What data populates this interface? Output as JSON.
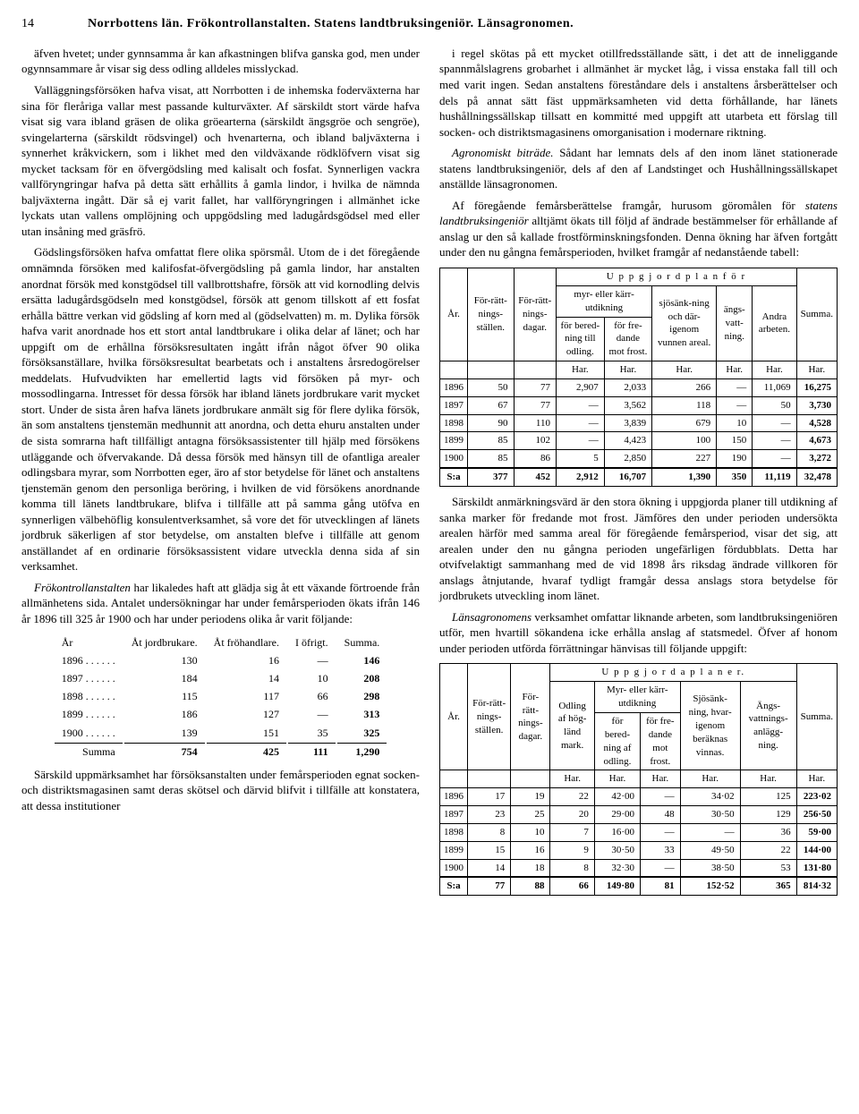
{
  "header": {
    "page_number": "14",
    "titles": "Norrbottens län.   Frökontrollanstalten.   Statens landtbruksingeniör.   Länsagronomen."
  },
  "left": {
    "p1": "äfven hvetet; under gynnsamma år kan afkastningen blifva ganska god, men under ogynnsammare år visar sig dess odling alldeles misslyckad.",
    "p2": "Valläggningsförsöken hafva visat, att Norrbotten i de inhemska foderväxterna har sina för fleråriga vallar mest passande kulturväxter. Af särskildt stort värde hafva visat sig vara ibland gräsen de olika gröearterna (särskildt ängsgröe och sengröe), svingelarterna (särskildt rödsvingel) och hvenarterna, och ibland baljväxterna i synnerhet kråkvickern, som i likhet med den vildväxande rödklöfvern visat sig mycket tacksam för en öfvergödsling med kalisalt och fosfat. Synnerligen vackra vallföryngringar hafva på detta sätt erhållits å gamla lindor, i hvilka de nämnda baljväxterna ingått. Där så ej varit fallet, har vallföryngringen i allmänhet icke lyckats utan vallens omplöjning och uppgödsling med ladugårdsgödsel med eller utan insåning med gräsfrö.",
    "p3": "Gödslingsförsöken hafva omfattat flere olika spörsmål. Utom de i det föregående omnämnda försöken med kalifosfat-öfvergödsling på gamla lindor, har anstalten anordnat försök med konstgödsel till vallbrottshafre, försök att vid kornodling delvis ersätta ladugårdsgödseln med konstgödsel, försök att genom tillskott af ett fosfat erhålla bättre verkan vid gödsling af korn med al (gödselvatten) m. m. Dylika försök hafva varit anordnade hos ett stort antal landtbrukare i olika delar af länet; och har uppgift om de erhållna försöksresultaten ingått ifrån något öfver 90 olika försöksanställare, hvilka försöksresultat bearbetats och i anstaltens årsredogörelser meddelats. Hufvudvikten har emellertid lagts vid försöken på myr- och mossodlingarna. Intresset för dessa försök har ibland länets jordbrukare varit mycket stort. Under de sista åren hafva länets jordbrukare anmält sig för flere dylika försök, än som anstaltens tjenstemän medhunnit att anordna, och detta ehuru anstalten under de sista somrarna haft tillfälligt antagna försöksassistenter till hjälp med försökens utläggande och öfvervakande. Då dessa försök med hänsyn till de ofantliga arealer odlingsbara myrar, som Norrbotten eger, äro af stor betydelse för länet och anstaltens tjenstemän genom den personliga beröring, i hvilken de vid försökens anordnande komma till länets landtbrukare, blifva i tillfälle att på samma gång utöfva en synnerligen välbehöflig konsulentverksamhet, så vore det för utvecklingen af länets jordbruk säkerligen af stor betydelse, om anstalten blefve i tillfälle att genom anställandet af en ordinarie försöksassistent vidare utveckla denna sida af sin verksamhet.",
    "p4a": "Frökontrollanstalten",
    "p4b": " har likaledes haft att glädja sig åt ett växande förtroende från allmänhetens sida. Antalet undersökningar har under femårsperioden ökats ifrån 146 år 1896 till 325 år 1900 och har under periodens olika år varit följande:",
    "simple_table": {
      "headers": [
        "År",
        "Åt jordbrukare.",
        "Åt fröhandlare.",
        "I öfrigt.",
        "Summa."
      ],
      "rows": [
        [
          "1896 . . . . . .",
          "130",
          "16",
          "—",
          "146"
        ],
        [
          "1897 . . . . . .",
          "184",
          "14",
          "10",
          "208"
        ],
        [
          "1898 . . . . . .",
          "115",
          "117",
          "66",
          "298"
        ],
        [
          "1899 . . . . . .",
          "186",
          "127",
          "—",
          "313"
        ],
        [
          "1900 . . . . . .",
          "139",
          "151",
          "35",
          "325"
        ]
      ],
      "sum": [
        "Summa",
        "754",
        "425",
        "111",
        "1,290"
      ]
    },
    "p5": "Särskild uppmärksamhet har försöksanstalten under femårsperioden egnat socken- och distriktsmagasinen samt deras skötsel och därvid blifvit i tillfälle att konstatera, att dessa institutioner"
  },
  "right": {
    "p1": "i regel skötas på ett mycket otillfredsställande sätt, i det att de inneliggande spannmålslagrens grobarhet i allmänhet är mycket låg, i vissa enstaka fall till och med varit ingen. Sedan anstaltens föreståndare dels i anstaltens årsberättelser och dels på annat sätt fäst uppmärksamheten vid detta förhållande, har länets hushållningssällskap tillsatt en kommitté med uppgift att utarbeta ett förslag till socken- och distriktsmagasinens omorganisation i modernare riktning.",
    "p2a": "Agronomiskt biträde.",
    "p2b": "  Sådant har lemnats dels af den inom länet stationerade statens landtbruksingeniör, dels af den af Landstinget och Hushållningssällskapet anställde länsagronomen.",
    "p3a": "Af föregående femårsberättelse framgår, hurusom göromålen för ",
    "p3b": "statens landtbruksingeniör",
    "p3c": " alltjämt ökats till följd af ändrade bestämmelser för erhållande af anslag ur den så kallade frostförminskningsfonden. Denna ökning har äfven fortgått under den nu gångna femårsperioden, hvilket framgår af nedanstående tabell:",
    "table1": {
      "caption": "U p p g j o r d   p l a n   f ö r",
      "headers_row2": [
        "År.",
        "För-rätt-nings-ställen.",
        "För-rätt-nings-dagar.",
        "myr- eller kärr-utdikning",
        "",
        "sjösänk-ning och där-igenom vunnen areal.",
        "ängs-vatt-ning.",
        "Andra arbeten.",
        "Summa."
      ],
      "headers_row3": [
        "för bered-ning till odling.",
        "för fre-dande mot frost."
      ],
      "unit": "Har.",
      "rows": [
        [
          "1896",
          "50",
          "77",
          "2,907",
          "2,033",
          "266",
          "—",
          "11,069",
          "16,275"
        ],
        [
          "1897",
          "67",
          "77",
          "—",
          "3,562",
          "118",
          "—",
          "50",
          "3,730"
        ],
        [
          "1898",
          "90",
          "110",
          "—",
          "3,839",
          "679",
          "10",
          "—",
          "4,528"
        ],
        [
          "1899",
          "85",
          "102",
          "—",
          "4,423",
          "100",
          "150",
          "—",
          "4,673"
        ],
        [
          "1900",
          "85",
          "86",
          "5",
          "2,850",
          "227",
          "190",
          "—",
          "3,272"
        ]
      ],
      "sum": [
        "S:a",
        "377",
        "452",
        "2,912",
        "16,707",
        "1,390",
        "350",
        "11,119",
        "32,478"
      ]
    },
    "p4": "Särskildt anmärkningsvärd är den stora ökning i uppgjorda planer till utdikning af sanka marker för fredande mot frost. Jämföres den under perioden undersökta arealen härför med samma areal för föregående femårsperiod, visar det sig, att arealen under den nu gångna perioden ungefärligen fördubblats. Detta har otvifvelaktigt sammanhang med de vid 1898 års riksdag ändrade villkoren för anslags åtnjutande, hvaraf tydligt framgår dessa anslags stora betydelse för jordbrukets utveckling inom länet.",
    "p5a": "Länsagronomens",
    "p5b": " verksamhet omfattar liknande arbeten, som landtbruksingeniören utför, men hvartill sökandena icke erhålla anslag af statsmedel. Öfver af honom under perioden utförda förrättningar hänvisas till följande uppgift:",
    "table2": {
      "caption": "U p p g j o r d a   p l a n e r.",
      "headers_row2": [
        "År.",
        "För-rätt-nings-ställen.",
        "För-rätt-nings-dagar.",
        "Odling af hög-länd mark.",
        "Myr- eller kärr-utdikning",
        "",
        "Sjösänk-ning, hvar-igenom beräknas vinnas.",
        "Ängs-vattnings-anlägg-ning.",
        "Summa."
      ],
      "headers_row3": [
        "för bered-ning af odling.",
        "för fre-dande mot frost."
      ],
      "unit": "Har.",
      "rows": [
        [
          "1896",
          "17",
          "19",
          "22",
          "42·00",
          "—",
          "34·02",
          "125",
          "223·02"
        ],
        [
          "1897",
          "23",
          "25",
          "20",
          "29·00",
          "48",
          "30·50",
          "129",
          "256·50"
        ],
        [
          "1898",
          "8",
          "10",
          "7",
          "16·00",
          "—",
          "—",
          "36",
          "59·00"
        ],
        [
          "1899",
          "15",
          "16",
          "9",
          "30·50",
          "33",
          "49·50",
          "22",
          "144·00"
        ],
        [
          "1900",
          "14",
          "18",
          "8",
          "32·30",
          "—",
          "38·50",
          "53",
          "131·80"
        ]
      ],
      "sum": [
        "S:a",
        "77",
        "88",
        "66",
        "149·80",
        "81",
        "152·52",
        "365",
        "814·32"
      ]
    }
  }
}
